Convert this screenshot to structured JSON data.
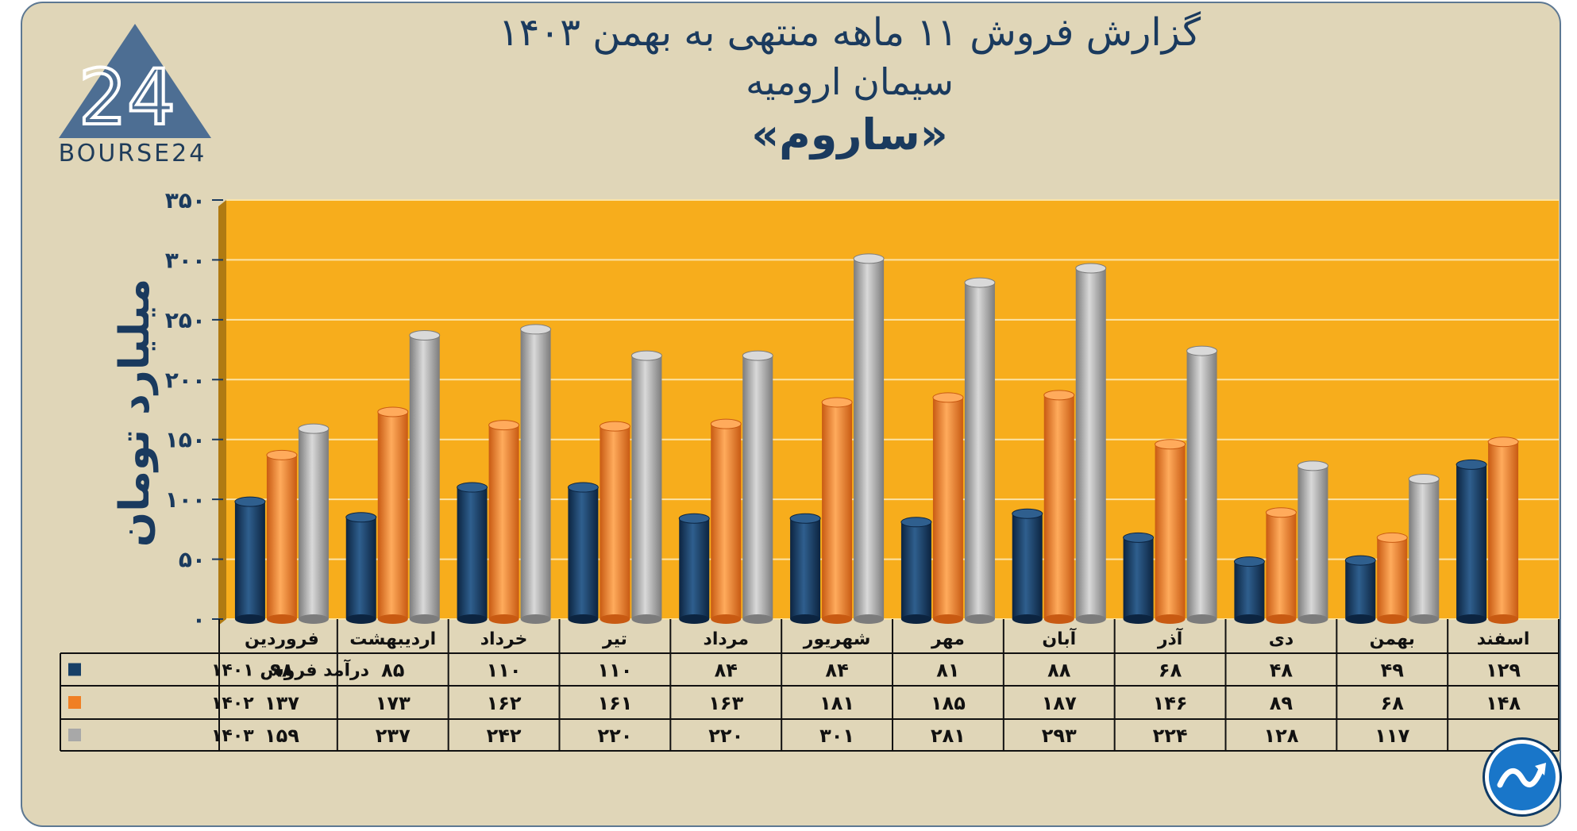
{
  "title": {
    "line1": "گزارش  فروش ۱۱ ماهه منتهی به بهمن ۱۴۰۳",
    "line2": "سیمان ارومیه",
    "line3": "«ساروم»"
  },
  "logo": {
    "text": "BOURSE24",
    "mark": "24"
  },
  "badge": {
    "icon": "trend-arrow-icon"
  },
  "chart_data": {
    "type": "bar",
    "ylabel": "میلیارد تومان",
    "ylim": [
      0,
      350
    ],
    "yticks": [
      0,
      50,
      100,
      150,
      200,
      250,
      300,
      350
    ],
    "ytick_labels": [
      "۰",
      "۵۰",
      "۱۰۰",
      "۱۵۰",
      "۲۰۰",
      "۲۵۰",
      "۳۰۰",
      "۳۵۰"
    ],
    "categories": [
      "فروردین",
      "اردیبهشت",
      "خرداد",
      "تیر",
      "مرداد",
      "شهریور",
      "مهر",
      "آبان",
      "آذر",
      "دی",
      "بهمن",
      "اسفند"
    ],
    "series": [
      {
        "name": "درآمد فروش ۱۴۰۱",
        "color": "#173f66",
        "values": [
          98,
          85,
          110,
          110,
          84,
          84,
          81,
          88,
          68,
          48,
          49,
          129
        ],
        "labels": [
          "۹۸",
          "۸۵",
          "۱۱۰",
          "۱۱۰",
          "۸۴",
          "۸۴",
          "۸۱",
          "۸۸",
          "۶۸",
          "۴۸",
          "۴۹",
          "۱۲۹"
        ]
      },
      {
        "name": "۱۴۰۲",
        "color": "#f07f24",
        "values": [
          137,
          173,
          162,
          161,
          163,
          181,
          185,
          187,
          146,
          89,
          68,
          148
        ],
        "labels": [
          "۱۳۷",
          "۱۷۳",
          "۱۶۲",
          "۱۶۱",
          "۱۶۳",
          "۱۸۱",
          "۱۸۵",
          "۱۸۷",
          "۱۴۶",
          "۸۹",
          "۶۸",
          "۱۴۸"
        ]
      },
      {
        "name": "۱۴۰۳",
        "color": "#a8a8a8",
        "values": [
          159,
          237,
          242,
          220,
          220,
          301,
          281,
          293,
          224,
          128,
          117,
          null
        ],
        "labels": [
          "۱۵۹",
          "۲۳۷",
          "۲۴۲",
          "۲۲۰",
          "۲۲۰",
          "۳۰۱",
          "۲۸۱",
          "۲۹۳",
          "۲۲۴",
          "۱۲۸",
          "۱۱۷",
          ""
        ]
      }
    ],
    "grid": true,
    "legend": "table-left"
  },
  "colors": {
    "plot_bg": "#f7ad1c",
    "accent": "#1a3a5e",
    "card_bg": "#e0d6b8"
  }
}
